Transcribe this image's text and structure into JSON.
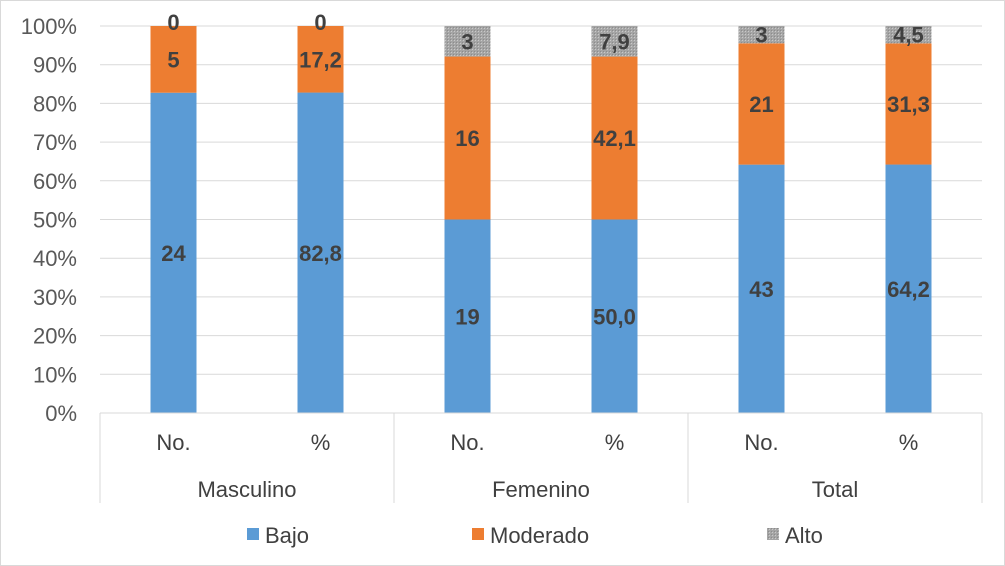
{
  "chart_data": {
    "type": "bar",
    "stacked": "100%",
    "groups": [
      "Masculino",
      "Femenino",
      "Total"
    ],
    "subcategories": [
      "No.",
      "%",
      "No.",
      "%",
      "No.",
      "%"
    ],
    "y_ticks": [
      "0%",
      "10%",
      "20%",
      "30%",
      "40%",
      "50%",
      "60%",
      "70%",
      "80%",
      "90%",
      "100%"
    ],
    "ylim": [
      0,
      100
    ],
    "grid": true,
    "legend_position": "bottom",
    "series": [
      {
        "name": "Bajo",
        "color": "#5b9bd5",
        "values": [
          24,
          82.8,
          19,
          50.0,
          43,
          64.2
        ],
        "labels": [
          "24",
          "82,8",
          "19",
          "50,0",
          "43",
          "64,2"
        ]
      },
      {
        "name": "Moderado",
        "color": "#ed7d31",
        "values": [
          5,
          17.2,
          16,
          42.1,
          21,
          31.3
        ],
        "labels": [
          "5",
          "17,2",
          "16",
          "42,1",
          "21",
          "31,3"
        ]
      },
      {
        "name": "Alto",
        "color": "#a5a5a5",
        "values": [
          0,
          0,
          3,
          7.9,
          3,
          4.5
        ],
        "labels": [
          "0",
          "0",
          "3",
          "7,9",
          "3",
          "4,5"
        ]
      }
    ]
  }
}
